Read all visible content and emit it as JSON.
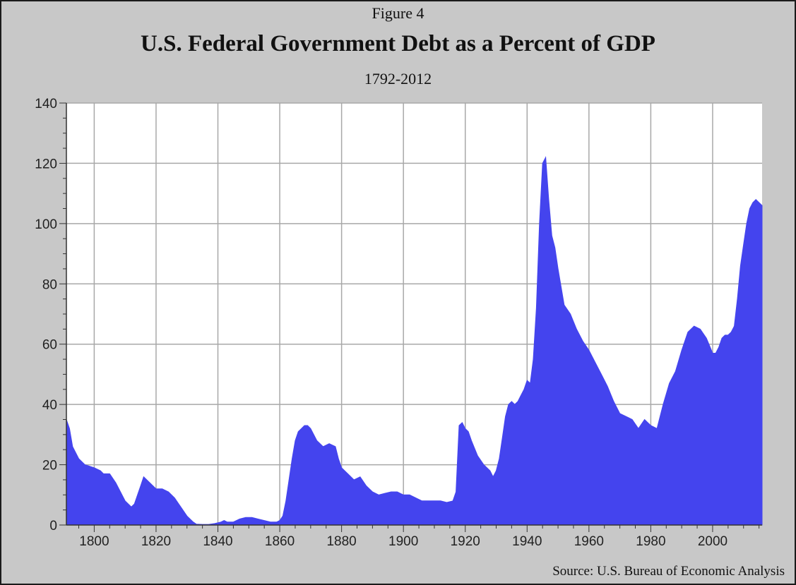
{
  "header": {
    "figure_label": "Figure 4",
    "title": "U.S. Federal Government Debt as a Percent of GDP",
    "subtitle": "1792-2012"
  },
  "footer": {
    "source": "Source: U.S. Bureau of Economic Analysis"
  },
  "colors": {
    "fill": "#4444ee",
    "plot_bg": "#ffffff",
    "frame_bg": "#c8c8c8",
    "grid": "#a8a8a8"
  },
  "chart_data": {
    "type": "area",
    "title": "U.S. Federal Government Debt as a Percent of GDP",
    "subtitle": "1792-2012",
    "xlabel": "",
    "ylabel": "",
    "xlim": [
      1791,
      2016
    ],
    "ylim": [
      0,
      140
    ],
    "x_ticks": [
      1800,
      1820,
      1840,
      1860,
      1880,
      1900,
      1920,
      1940,
      1960,
      1980,
      2000
    ],
    "y_ticks": [
      0,
      20,
      40,
      60,
      80,
      100,
      120,
      140
    ],
    "grid": true,
    "legend": "none",
    "series": [
      {
        "x": [
          1791,
          1792,
          1793,
          1795,
          1797,
          1800,
          1802,
          1803,
          1805,
          1807,
          1809,
          1810,
          1812,
          1813,
          1815,
          1816,
          1818,
          1820,
          1822,
          1824,
          1826,
          1828,
          1830,
          1832,
          1833,
          1835,
          1837,
          1839,
          1841,
          1842,
          1843,
          1845,
          1847,
          1849,
          1851,
          1853,
          1855,
          1857,
          1859,
          1860,
          1861,
          1862,
          1863,
          1864,
          1865,
          1866,
          1867,
          1868,
          1869,
          1870,
          1872,
          1874,
          1876,
          1878,
          1879,
          1880,
          1882,
          1884,
          1886,
          1888,
          1890,
          1892,
          1894,
          1896,
          1898,
          1900,
          1902,
          1904,
          1906,
          1908,
          1910,
          1912,
          1914,
          1916,
          1917,
          1918,
          1919,
          1920,
          1921,
          1922,
          1924,
          1926,
          1928,
          1929,
          1930,
          1931,
          1932,
          1933,
          1934,
          1935,
          1936,
          1937,
          1938,
          1939,
          1940,
          1941,
          1942,
          1943,
          1944,
          1945,
          1946,
          1947,
          1948,
          1949,
          1950,
          1952,
          1954,
          1956,
          1958,
          1960,
          1962,
          1964,
          1966,
          1968,
          1970,
          1972,
          1974,
          1976,
          1978,
          1980,
          1982,
          1984,
          1986,
          1988,
          1990,
          1992,
          1994,
          1996,
          1998,
          2000,
          2001,
          2002,
          2003,
          2004,
          2005,
          2006,
          2007,
          2008,
          2009,
          2010,
          2011,
          2012,
          2013,
          2014,
          2015,
          2016
        ],
        "values": [
          35,
          32,
          26,
          22,
          20,
          19,
          18,
          17,
          17,
          14,
          10,
          8,
          6,
          7,
          13,
          16,
          14,
          12,
          12,
          11,
          9,
          6,
          3,
          1,
          0.3,
          0.2,
          0.2,
          0.5,
          1,
          1.5,
          1,
          1,
          2,
          2.5,
          2.5,
          2,
          1.5,
          1,
          1,
          1.5,
          3,
          8,
          15,
          22,
          28,
          31,
          32,
          33,
          33,
          32,
          28,
          26,
          27,
          26,
          22,
          19,
          17,
          15,
          16,
          13,
          11,
          10,
          10.5,
          11,
          11,
          10,
          10,
          9,
          8,
          8,
          8,
          8,
          7.5,
          8,
          11,
          33,
          34,
          32,
          31,
          28,
          23,
          20,
          18,
          16,
          18,
          22,
          29,
          36,
          40,
          41,
          40,
          41,
          43,
          45,
          48,
          47,
          55,
          72,
          100,
          120,
          122,
          108,
          96,
          92,
          85,
          73,
          70,
          65,
          61,
          58,
          54,
          50,
          46,
          41,
          37,
          36,
          35,
          32,
          35,
          33,
          32,
          40,
          47,
          51,
          58,
          64,
          66,
          65,
          62,
          57,
          57,
          59,
          62,
          63,
          63,
          64,
          66,
          75,
          86,
          93,
          100,
          105,
          107,
          108,
          107,
          106
        ]
      }
    ]
  }
}
